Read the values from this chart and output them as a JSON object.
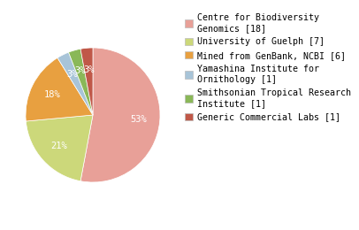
{
  "labels": [
    "Centre for Biodiversity\nGenomics [18]",
    "University of Guelph [7]",
    "Mined from GenBank, NCBI [6]",
    "Yamashina Institute for\nOrnithology [1]",
    "Smithsonian Tropical Research\nInstitute [1]",
    "Generic Commercial Labs [1]"
  ],
  "values": [
    18,
    7,
    6,
    1,
    1,
    1
  ],
  "colors": [
    "#e8a098",
    "#ccd87a",
    "#e8a040",
    "#a8c4d8",
    "#8ab858",
    "#c05848"
  ],
  "startangle": 90,
  "background_color": "#ffffff",
  "text_color": "#ffffff",
  "legend_fontsize": 7.2,
  "pct_fontsize": 7.5,
  "pct_distance": 0.68
}
